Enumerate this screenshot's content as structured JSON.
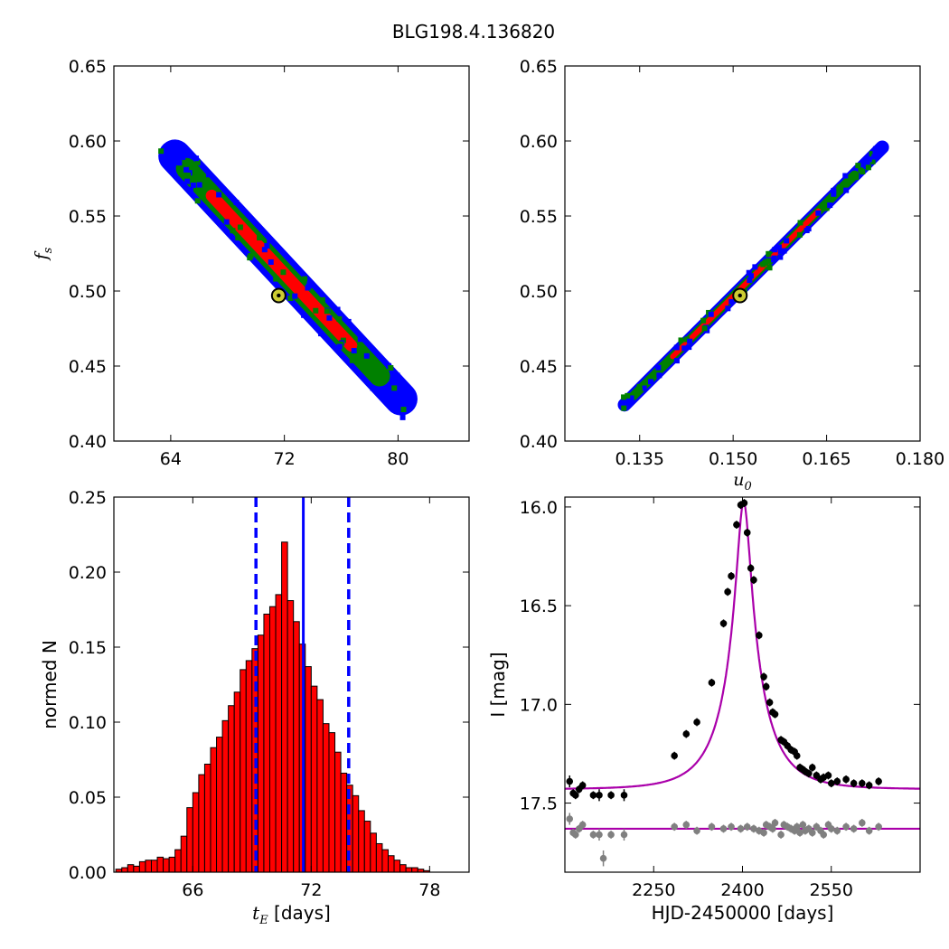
{
  "suptitle": "BLG198.4.136820",
  "chart_data": [
    {
      "id": "fs_vs_tE",
      "type": "heatmap",
      "xlabel": "",
      "ylabel": "f_s",
      "xlim": [
        60.0,
        85.0
      ],
      "ylim": [
        0.4,
        0.65
      ],
      "xticks": [
        "64",
        "72",
        "80"
      ],
      "xtick_values": [
        64,
        72,
        80
      ],
      "yticks": [
        "0.40",
        "0.45",
        "0.50",
        "0.55",
        "0.60",
        "0.65"
      ],
      "ytick_values": [
        0.4,
        0.45,
        0.5,
        0.55,
        0.6,
        0.65
      ],
      "colors": {
        "outer": "#0000ff",
        "middle": "#008000",
        "inner": "#ff0000",
        "marker_fill": "#cccc33"
      },
      "best_fit": {
        "x": 71.6,
        "y": 0.497
      },
      "band": {
        "x_start": 63.5,
        "y_start": 0.598,
        "x_end": 81.0,
        "y_end": 0.42,
        "widths": {
          "outer": 0.022,
          "middle": 0.014,
          "inner": 0.008
        },
        "inner_range": [
          66.6,
          77.0
        ],
        "middle_range": [
          64.6,
          79.2
        ]
      }
    },
    {
      "id": "fs_vs_u0",
      "type": "heatmap",
      "xlabel": "u_0",
      "ylabel": "",
      "xlim": [
        0.123,
        0.18
      ],
      "ylim": [
        0.4,
        0.65
      ],
      "xticks": [
        "0.135",
        "0.150",
        "0.165",
        "0.180"
      ],
      "xtick_values": [
        0.135,
        0.15,
        0.165,
        0.18
      ],
      "yticks": [
        "0.40",
        "0.45",
        "0.50",
        "0.55",
        "0.60",
        "0.65"
      ],
      "ytick_values": [
        0.4,
        0.45,
        0.5,
        0.55,
        0.6,
        0.65
      ],
      "colors": {
        "outer": "#0000ff",
        "middle": "#008000",
        "inner": "#ff0000",
        "marker_fill": "#cccc33"
      },
      "best_fit": {
        "x": 0.1511,
        "y": 0.497
      },
      "band": {
        "x_start": 0.1318,
        "y_start": 0.421,
        "x_end": 0.1747,
        "y_end": 0.599,
        "widths": {
          "outer": 0.009,
          "middle": 0.006,
          "inner": 0.0035
        },
        "inner_range": [
          0.14,
          0.164
        ],
        "middle_range": [
          0.1335,
          0.17
        ]
      }
    },
    {
      "id": "tE_histogram",
      "type": "bar",
      "xlabel": "t_E [days]",
      "ylabel": "normed N",
      "xlim": [
        62.0,
        80.0
      ],
      "ylim": [
        0.0,
        0.25
      ],
      "xticks": [
        "66",
        "72",
        "78"
      ],
      "xtick_values": [
        66,
        72,
        78
      ],
      "yticks": [
        "0.00",
        "0.05",
        "0.10",
        "0.15",
        "0.20",
        "0.25"
      ],
      "ytick_values": [
        0.0,
        0.05,
        0.1,
        0.15,
        0.2,
        0.25
      ],
      "bin_width": 0.3,
      "bins_start": 62.1,
      "values": [
        0.002,
        0.003,
        0.005,
        0.004,
        0.007,
        0.008,
        0.008,
        0.01,
        0.009,
        0.01,
        0.015,
        0.024,
        0.043,
        0.053,
        0.065,
        0.072,
        0.083,
        0.09,
        0.101,
        0.111,
        0.12,
        0.135,
        0.141,
        0.149,
        0.158,
        0.172,
        0.177,
        0.185,
        0.22,
        0.181,
        0.167,
        0.152,
        0.137,
        0.124,
        0.115,
        0.099,
        0.093,
        0.08,
        0.066,
        0.058,
        0.051,
        0.041,
        0.034,
        0.026,
        0.019,
        0.015,
        0.011,
        0.008,
        0.005,
        0.003,
        0.003,
        0.002,
        0.001
      ],
      "bar_color": "#ff0000",
      "median": 71.6,
      "ci_low": 69.2,
      "ci_high": 73.9,
      "line_color": "#0000ff"
    },
    {
      "id": "light_curve",
      "type": "scatter",
      "xlabel": "HJD-2450000 [days]",
      "ylabel": "I [mag]",
      "xlim": [
        2100,
        2700
      ],
      "ylim": [
        17.85,
        15.95
      ],
      "xticks": [
        "2250",
        "2400",
        "2550"
      ],
      "xtick_values": [
        2250,
        2400,
        2550
      ],
      "yticks": [
        "16.0",
        "16.5",
        "17.0",
        "17.5"
      ],
      "ytick_values": [
        16.0,
        16.5,
        17.0,
        17.5
      ],
      "model": {
        "t0": 2402,
        "tE": 71.6,
        "u0": 0.151,
        "fs": 0.497,
        "I_base": 17.43,
        "color": "#aa00aa"
      },
      "residual_line": 17.63,
      "data_points": [
        [
          2108,
          17.39,
          0.03
        ],
        [
          2114,
          17.45,
          0.02
        ],
        [
          2118,
          17.46,
          0.02
        ],
        [
          2124,
          17.43,
          0.02
        ],
        [
          2130,
          17.41,
          0.02
        ],
        [
          2148,
          17.46,
          0.02
        ],
        [
          2158,
          17.46,
          0.03
        ],
        [
          2178,
          17.46,
          0.02
        ],
        [
          2200,
          17.46,
          0.03
        ],
        [
          2285,
          17.26,
          0.02
        ],
        [
          2305,
          17.15,
          0.02
        ],
        [
          2323,
          17.09,
          0.02
        ],
        [
          2348,
          16.89,
          0.02
        ],
        [
          2368,
          16.59,
          0.02
        ],
        [
          2375,
          16.43,
          0.02
        ],
        [
          2381,
          16.35,
          0.02
        ],
        [
          2390,
          16.09,
          0.02
        ],
        [
          2397,
          15.99,
          0.02
        ],
        [
          2403,
          15.98,
          0.02
        ],
        [
          2408,
          16.13,
          0.02
        ],
        [
          2414,
          16.31,
          0.02
        ],
        [
          2419,
          16.37,
          0.02
        ],
        [
          2428,
          16.65,
          0.02
        ],
        [
          2436,
          16.86,
          0.02
        ],
        [
          2440,
          16.91,
          0.02
        ],
        [
          2446,
          16.99,
          0.02
        ],
        [
          2451,
          17.04,
          0.02
        ],
        [
          2455,
          17.05,
          0.02
        ],
        [
          2465,
          17.18,
          0.02
        ],
        [
          2470,
          17.19,
          0.02
        ],
        [
          2476,
          17.21,
          0.02
        ],
        [
          2482,
          17.23,
          0.02
        ],
        [
          2488,
          17.24,
          0.02
        ],
        [
          2492,
          17.26,
          0.02
        ],
        [
          2497,
          17.32,
          0.02
        ],
        [
          2502,
          17.33,
          0.02
        ],
        [
          2506,
          17.34,
          0.02
        ],
        [
          2512,
          17.35,
          0.02
        ],
        [
          2518,
          17.32,
          0.02
        ],
        [
          2525,
          17.36,
          0.02
        ],
        [
          2532,
          17.38,
          0.02
        ],
        [
          2537,
          17.37,
          0.02
        ],
        [
          2545,
          17.36,
          0.02
        ],
        [
          2550,
          17.4,
          0.02
        ],
        [
          2560,
          17.39,
          0.02
        ],
        [
          2575,
          17.38,
          0.02
        ],
        [
          2588,
          17.4,
          0.02
        ],
        [
          2602,
          17.4,
          0.02
        ],
        [
          2614,
          17.41,
          0.02
        ],
        [
          2630,
          17.39,
          0.02
        ]
      ],
      "residual_points": [
        [
          2108,
          17.58,
          0.03
        ],
        [
          2114,
          17.65,
          0.02
        ],
        [
          2118,
          17.66,
          0.02
        ],
        [
          2124,
          17.63,
          0.02
        ],
        [
          2130,
          17.61,
          0.02
        ],
        [
          2148,
          17.66,
          0.02
        ],
        [
          2158,
          17.66,
          0.03
        ],
        [
          2165,
          17.78,
          0.04
        ],
        [
          2178,
          17.66,
          0.02
        ],
        [
          2200,
          17.66,
          0.03
        ],
        [
          2285,
          17.62,
          0.02
        ],
        [
          2305,
          17.61,
          0.02
        ],
        [
          2323,
          17.64,
          0.02
        ],
        [
          2348,
          17.62,
          0.02
        ],
        [
          2368,
          17.63,
          0.02
        ],
        [
          2381,
          17.62,
          0.02
        ],
        [
          2397,
          17.63,
          0.02
        ],
        [
          2408,
          17.62,
          0.02
        ],
        [
          2419,
          17.63,
          0.02
        ],
        [
          2428,
          17.64,
          0.02
        ],
        [
          2436,
          17.65,
          0.02
        ],
        [
          2440,
          17.61,
          0.02
        ],
        [
          2446,
          17.62,
          0.02
        ],
        [
          2451,
          17.63,
          0.02
        ],
        [
          2455,
          17.6,
          0.02
        ],
        [
          2465,
          17.66,
          0.02
        ],
        [
          2470,
          17.61,
          0.02
        ],
        [
          2476,
          17.62,
          0.02
        ],
        [
          2482,
          17.63,
          0.02
        ],
        [
          2488,
          17.64,
          0.02
        ],
        [
          2492,
          17.62,
          0.02
        ],
        [
          2497,
          17.65,
          0.02
        ],
        [
          2502,
          17.61,
          0.02
        ],
        [
          2506,
          17.64,
          0.02
        ],
        [
          2512,
          17.63,
          0.02
        ],
        [
          2518,
          17.65,
          0.02
        ],
        [
          2525,
          17.62,
          0.02
        ],
        [
          2532,
          17.64,
          0.02
        ],
        [
          2537,
          17.66,
          0.02
        ],
        [
          2545,
          17.61,
          0.02
        ],
        [
          2550,
          17.63,
          0.02
        ],
        [
          2560,
          17.64,
          0.02
        ],
        [
          2575,
          17.62,
          0.02
        ],
        [
          2588,
          17.63,
          0.02
        ],
        [
          2602,
          17.6,
          0.02
        ],
        [
          2614,
          17.64,
          0.02
        ],
        [
          2630,
          17.62,
          0.02
        ]
      ]
    }
  ]
}
